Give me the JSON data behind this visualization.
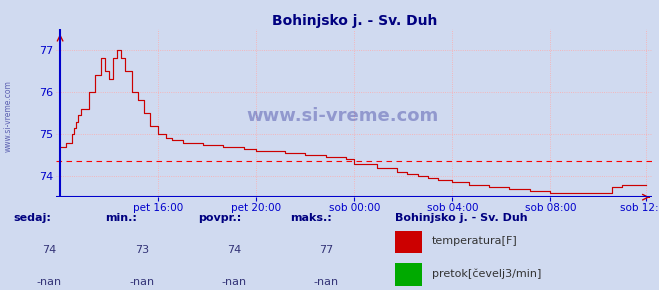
{
  "title": "Bohinjsko j. - Sv. Duh",
  "title_color": "#000080",
  "bg_color": "#d0daf0",
  "plot_bg_color": "#d0daf0",
  "grid_color": "#ffaaaa",
  "line_color": "#cc0000",
  "avg_line_color": "#ff0000",
  "avg_line_value": 74.35,
  "bottom_line_color": "#0000cc",
  "xlabel_color": "#0000cc",
  "ylabel_color": "#0000cc",
  "watermark_color": "#000080",
  "ylim_min": 73.5,
  "ylim_max": 77.5,
  "yticks": [
    74,
    75,
    76,
    77
  ],
  "xtick_labels": [
    "pet 16:00",
    "pet 20:00",
    "sob 00:00",
    "sob 04:00",
    "sob 08:00",
    "sob 12:00"
  ],
  "xtick_positions": [
    48,
    96,
    144,
    192,
    240,
    287
  ],
  "footer_labels": [
    "sedaj:",
    "min.:",
    "povpr.:",
    "maks.:"
  ],
  "footer_values": [
    "74",
    "73",
    "74",
    "77"
  ],
  "footer_nan": [
    "-nan",
    "-nan",
    "-nan",
    "-nan"
  ],
  "legend_title": "Bohinjsko j. - Sv. Duh",
  "legend_items": [
    "temperatura[F]",
    "pretok[čevelj3/min]"
  ],
  "legend_colors": [
    "#cc0000",
    "#00aa00"
  ]
}
